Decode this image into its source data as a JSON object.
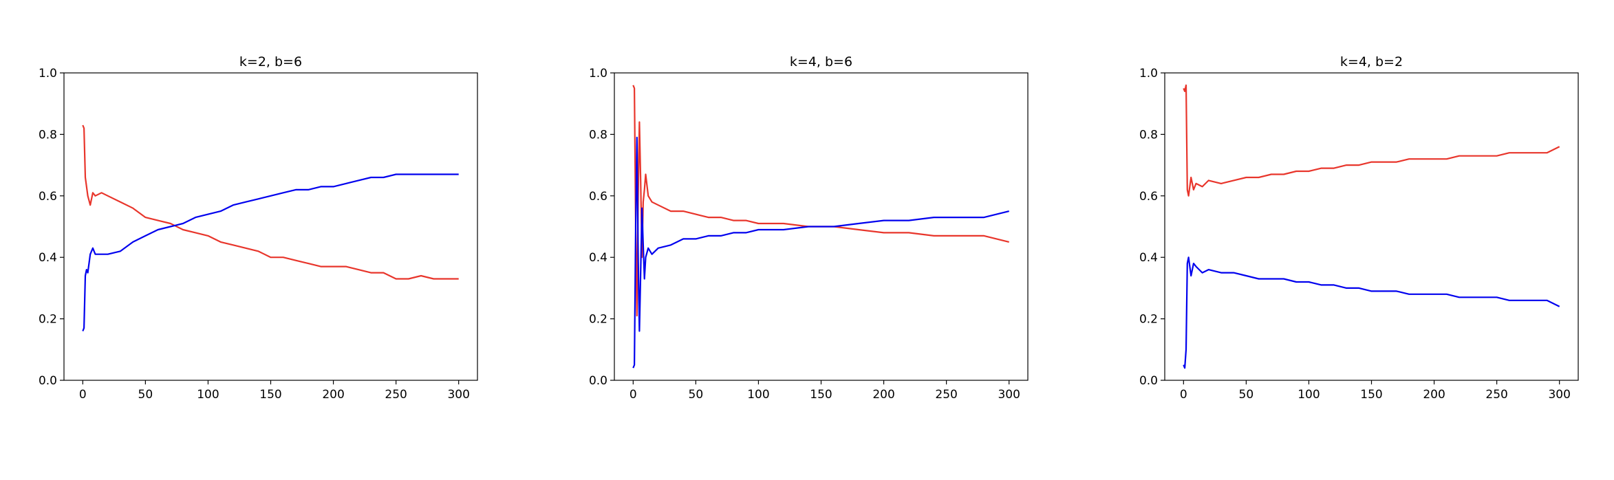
{
  "colors": {
    "series_a": "#e8352b",
    "series_b": "#0000ee"
  },
  "chart_data": [
    {
      "type": "line",
      "title": "k=2, b=6",
      "xlim": [
        -15,
        315
      ],
      "ylim": [
        0,
        1
      ],
      "xticks": [
        0,
        50,
        100,
        150,
        200,
        250,
        300
      ],
      "yticks": [
        0.0,
        0.2,
        0.4,
        0.6,
        0.8,
        1.0
      ],
      "xtick_labels": [
        "0",
        "50",
        "100",
        "150",
        "200",
        "250",
        "300"
      ],
      "ytick_labels": [
        "0.0",
        "0.2",
        "0.4",
        "0.6",
        "0.8",
        "1.0"
      ],
      "grid": false,
      "series": [
        {
          "color": "#e8352b",
          "x": [
            0,
            1,
            2,
            3,
            4,
            6,
            8,
            10,
            15,
            20,
            30,
            40,
            50,
            60,
            70,
            80,
            90,
            100,
            110,
            120,
            130,
            140,
            150,
            160,
            170,
            180,
            190,
            200,
            210,
            220,
            230,
            240,
            250,
            260,
            270,
            280,
            290,
            300
          ],
          "y": [
            0.83,
            0.82,
            0.66,
            0.63,
            0.6,
            0.57,
            0.61,
            0.6,
            0.61,
            0.6,
            0.58,
            0.56,
            0.53,
            0.52,
            0.51,
            0.49,
            0.48,
            0.47,
            0.45,
            0.44,
            0.43,
            0.42,
            0.4,
            0.4,
            0.39,
            0.38,
            0.37,
            0.37,
            0.37,
            0.36,
            0.35,
            0.35,
            0.33,
            0.33,
            0.34,
            0.33,
            0.33,
            0.33
          ]
        },
        {
          "color": "#0000ee",
          "x": [
            0,
            1,
            2,
            3,
            4,
            6,
            8,
            10,
            15,
            20,
            30,
            40,
            50,
            60,
            70,
            80,
            90,
            100,
            110,
            120,
            130,
            140,
            150,
            160,
            170,
            180,
            190,
            200,
            210,
            220,
            230,
            240,
            250,
            260,
            270,
            280,
            290,
            300
          ],
          "y": [
            0.16,
            0.17,
            0.34,
            0.36,
            0.35,
            0.41,
            0.43,
            0.41,
            0.41,
            0.41,
            0.42,
            0.45,
            0.47,
            0.49,
            0.5,
            0.51,
            0.53,
            0.54,
            0.55,
            0.57,
            0.58,
            0.59,
            0.6,
            0.61,
            0.62,
            0.62,
            0.63,
            0.63,
            0.64,
            0.65,
            0.66,
            0.66,
            0.67,
            0.67,
            0.67,
            0.67,
            0.67,
            0.67
          ]
        }
      ]
    },
    {
      "type": "line",
      "title": "k=4, b=6",
      "xlim": [
        -15,
        315
      ],
      "ylim": [
        0,
        1
      ],
      "xticks": [
        0,
        50,
        100,
        150,
        200,
        250,
        300
      ],
      "yticks": [
        0.0,
        0.2,
        0.4,
        0.6,
        0.8,
        1.0
      ],
      "xtick_labels": [
        "0",
        "50",
        "100",
        "150",
        "200",
        "250",
        "300"
      ],
      "ytick_labels": [
        "0.0",
        "0.2",
        "0.4",
        "0.6",
        "0.8",
        "1.0"
      ],
      "grid": false,
      "series": [
        {
          "color": "#e8352b",
          "x": [
            0,
            1,
            2,
            3,
            4,
            5,
            6,
            7,
            8,
            9,
            10,
            12,
            15,
            20,
            30,
            40,
            50,
            60,
            70,
            80,
            90,
            100,
            120,
            140,
            160,
            180,
            200,
            220,
            240,
            260,
            280,
            290,
            300
          ],
          "y": [
            0.96,
            0.95,
            0.5,
            0.21,
            0.6,
            0.84,
            0.65,
            0.4,
            0.58,
            0.62,
            0.67,
            0.6,
            0.58,
            0.57,
            0.55,
            0.55,
            0.54,
            0.53,
            0.53,
            0.52,
            0.52,
            0.51,
            0.51,
            0.5,
            0.5,
            0.49,
            0.48,
            0.48,
            0.47,
            0.47,
            0.47,
            0.46,
            0.45
          ]
        },
        {
          "color": "#0000ee",
          "x": [
            0,
            1,
            2,
            3,
            4,
            5,
            6,
            7,
            8,
            9,
            10,
            12,
            15,
            20,
            30,
            40,
            50,
            60,
            70,
            80,
            90,
            100,
            120,
            140,
            160,
            180,
            200,
            220,
            240,
            260,
            280,
            290,
            300
          ],
          "y": [
            0.04,
            0.05,
            0.5,
            0.79,
            0.4,
            0.16,
            0.35,
            0.56,
            0.44,
            0.33,
            0.4,
            0.43,
            0.41,
            0.43,
            0.44,
            0.46,
            0.46,
            0.47,
            0.47,
            0.48,
            0.48,
            0.49,
            0.49,
            0.5,
            0.5,
            0.51,
            0.52,
            0.52,
            0.53,
            0.53,
            0.53,
            0.54,
            0.55
          ]
        }
      ]
    },
    {
      "type": "line",
      "title": "k=4, b=2",
      "xlim": [
        -15,
        315
      ],
      "ylim": [
        0,
        1
      ],
      "xticks": [
        0,
        50,
        100,
        150,
        200,
        250,
        300
      ],
      "yticks": [
        0.0,
        0.2,
        0.4,
        0.6,
        0.8,
        1.0
      ],
      "xtick_labels": [
        "0",
        "50",
        "100",
        "150",
        "200",
        "250",
        "300"
      ],
      "ytick_labels": [
        "0.0",
        "0.2",
        "0.4",
        "0.6",
        "0.8",
        "1.0"
      ],
      "grid": false,
      "series": [
        {
          "color": "#e8352b",
          "x": [
            0,
            1,
            2,
            3,
            4,
            6,
            8,
            10,
            15,
            20,
            30,
            40,
            50,
            60,
            70,
            80,
            90,
            100,
            110,
            120,
            130,
            140,
            150,
            160,
            170,
            180,
            190,
            200,
            210,
            220,
            230,
            240,
            250,
            260,
            270,
            280,
            290,
            300
          ],
          "y": [
            0.95,
            0.94,
            0.96,
            0.62,
            0.6,
            0.66,
            0.62,
            0.64,
            0.63,
            0.65,
            0.64,
            0.65,
            0.66,
            0.66,
            0.67,
            0.67,
            0.68,
            0.68,
            0.69,
            0.69,
            0.7,
            0.7,
            0.71,
            0.71,
            0.71,
            0.72,
            0.72,
            0.72,
            0.72,
            0.73,
            0.73,
            0.73,
            0.73,
            0.74,
            0.74,
            0.74,
            0.74,
            0.76
          ]
        },
        {
          "color": "#0000ee",
          "x": [
            0,
            1,
            2,
            3,
            4,
            6,
            8,
            10,
            15,
            20,
            30,
            40,
            50,
            60,
            70,
            80,
            90,
            100,
            110,
            120,
            130,
            140,
            150,
            160,
            170,
            180,
            190,
            200,
            210,
            220,
            230,
            240,
            250,
            260,
            270,
            280,
            290,
            300
          ],
          "y": [
            0.05,
            0.04,
            0.1,
            0.38,
            0.4,
            0.34,
            0.38,
            0.37,
            0.35,
            0.36,
            0.35,
            0.35,
            0.34,
            0.33,
            0.33,
            0.33,
            0.32,
            0.32,
            0.31,
            0.31,
            0.3,
            0.3,
            0.29,
            0.29,
            0.29,
            0.28,
            0.28,
            0.28,
            0.28,
            0.27,
            0.27,
            0.27,
            0.27,
            0.26,
            0.26,
            0.26,
            0.26,
            0.24
          ]
        }
      ]
    }
  ]
}
